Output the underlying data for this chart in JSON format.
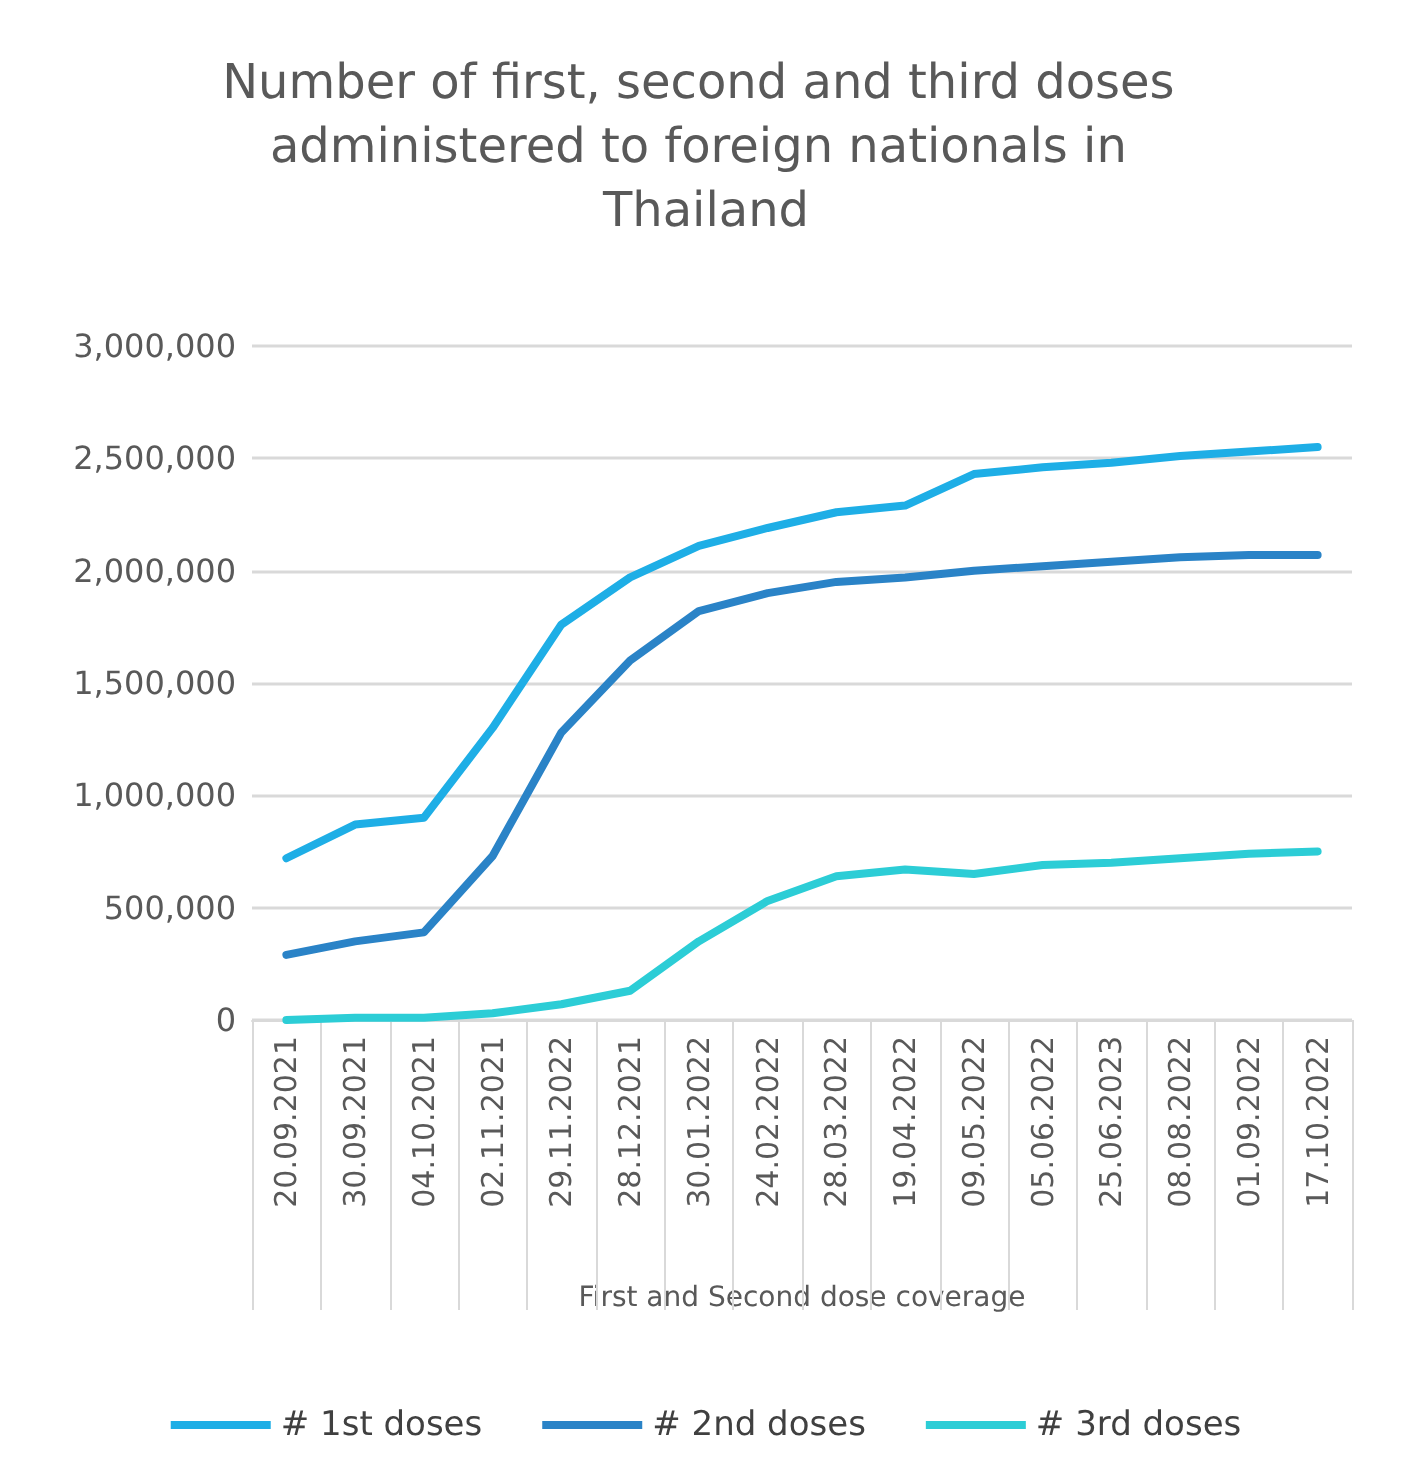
{
  "chart_data": {
    "type": "line",
    "title": "Number of first, second and third doses administered to foreign nationals in Thailand",
    "xlabel": "First and Second dose coverage",
    "categories": [
      "20.09.2021",
      "30.09.2021",
      "04.10.2021",
      "02.11.2021",
      "29.11.2022",
      "28.12.2021",
      "30.01.2022",
      "24.02.2022",
      "28.03.2022",
      "19.04.2022",
      "09.05.2022",
      "05.06.2022",
      "25.06.2023",
      "08.08.2022",
      "01.09.2022",
      "17.10.2022"
    ],
    "series": [
      {
        "name": "# 1st doses",
        "color": "#1eaee6",
        "values": [
          720000,
          870000,
          900000,
          1300000,
          1760000,
          1970000,
          2110000,
          2190000,
          2260000,
          2290000,
          2430000,
          2460000,
          2480000,
          2510000,
          2530000,
          2550000
        ]
      },
      {
        "name": "# 2nd doses",
        "color": "#2a83c7",
        "values": [
          290000,
          350000,
          390000,
          730000,
          1280000,
          1600000,
          1820000,
          1900000,
          1950000,
          1970000,
          2000000,
          2020000,
          2040000,
          2060000,
          2070000,
          2070000
        ]
      },
      {
        "name": "# 3rd doses",
        "color": "#2ccdd6",
        "values": [
          0,
          10000,
          10000,
          30000,
          70000,
          130000,
          350000,
          530000,
          640000,
          670000,
          650000,
          690000,
          700000,
          720000,
          740000,
          750000
        ]
      }
    ],
    "ylim": [
      0,
      3000000
    ],
    "yticks": [
      0,
      {
        "value": 500000,
        "label": "500,000"
      },
      {
        "value": 1000000,
        "label": "1,000,000"
      },
      {
        "value": 1500000,
        "label": "1,500,000"
      },
      {
        "value": 2000000,
        "label": "2,000,000"
      },
      {
        "value": 2500000,
        "label": "2,500,000"
      },
      {
        "value": 3000000,
        "label": "3,000,000"
      }
    ],
    "grid": "y",
    "legend": "bottom",
    "marker": "none",
    "line_style": "solid"
  }
}
